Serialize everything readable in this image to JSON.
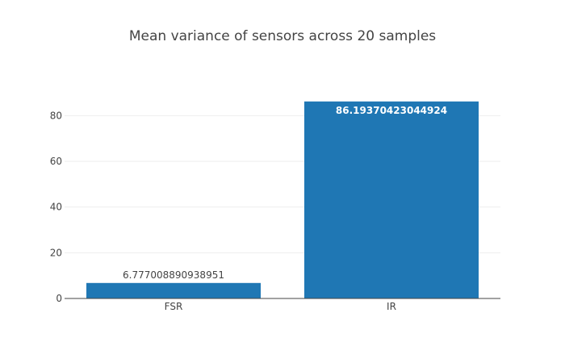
{
  "chart_data": {
    "type": "bar",
    "title": "Mean variance of sensors across 20 samples",
    "xlabel": "",
    "ylabel": "",
    "categories": [
      "FSR",
      "IR"
    ],
    "values": [
      6.777008890938951,
      86.19370423044924
    ],
    "data_labels": [
      "6.777008890938951",
      "86.19370423044924"
    ],
    "ylim": [
      0,
      90.7
    ],
    "yticks": [
      0,
      20,
      40,
      60,
      80
    ],
    "ytick_labels": [
      "0",
      "20",
      "40",
      "60",
      "80"
    ],
    "grid": true,
    "legend": "none",
    "colors": {
      "bar": "#1f77b4",
      "grid": "#eeeeee",
      "axis": "#444444",
      "text": "#444444",
      "label_inside": "#ffffff"
    }
  }
}
